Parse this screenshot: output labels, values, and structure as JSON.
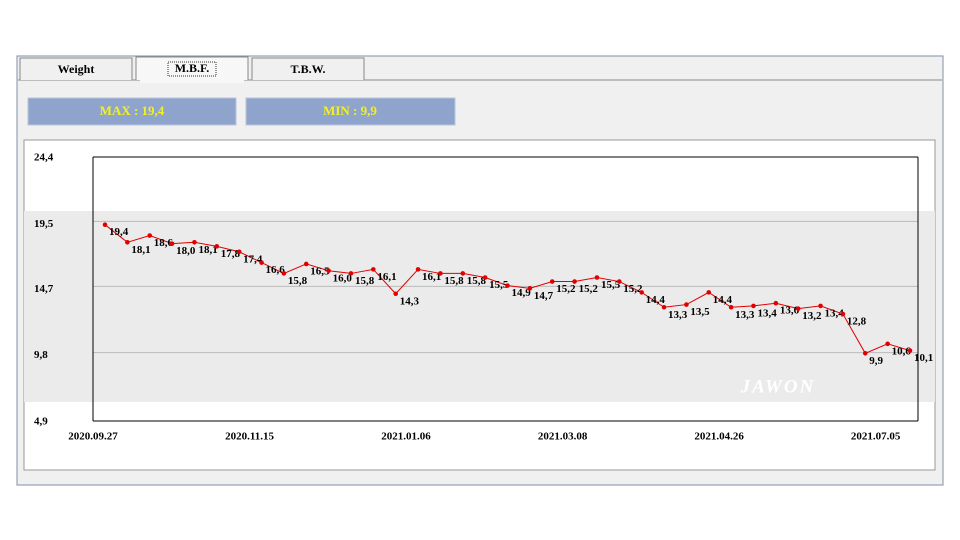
{
  "tabs": [
    "Weight",
    "M.B.F.",
    "T.B.W."
  ],
  "stats": {
    "max": "MAX : 19,4",
    "min": "MIN : 9,9"
  },
  "watermark": "JAWON",
  "chart_data": {
    "type": "line",
    "categories": [
      "2020.09.27",
      null,
      null,
      null,
      null,
      null,
      null,
      "2020.11.15",
      null,
      null,
      null,
      null,
      null,
      null,
      "2021.01.06",
      null,
      null,
      null,
      null,
      null,
      null,
      "2021.03.08",
      null,
      null,
      null,
      null,
      null,
      null,
      "2021.04.26",
      null,
      null,
      null,
      null,
      null,
      null,
      "2021.07.05",
      null
    ],
    "values": [
      19.4,
      18.1,
      18.6,
      18.0,
      18.1,
      17.8,
      17.4,
      16.6,
      15.8,
      16.5,
      16.0,
      15.8,
      16.1,
      14.3,
      16.1,
      15.8,
      15.8,
      15.5,
      14.9,
      14.7,
      15.2,
      15.2,
      15.5,
      15.2,
      14.4,
      13.3,
      13.5,
      14.4,
      13.3,
      13.4,
      13.6,
      13.2,
      13.4,
      12.8,
      9.9,
      10.6,
      10.1
    ],
    "value_labels": [
      "19,4",
      "18,1",
      "18,6",
      "18,0",
      "18,1",
      "17,8",
      "17,4",
      "16,6",
      "15,8",
      "16,5",
      "16,0",
      "15,8",
      "16,1",
      "14,3",
      "16,1",
      "15,8",
      "15,8",
      "15,5",
      "14,9",
      "14,7",
      "15,2",
      "15,2",
      "15,5",
      "15,2",
      "14,4",
      "13,3",
      "13,5",
      "14,4",
      "13,3",
      "13,4",
      "13,6",
      "13,2",
      "13,4",
      "12,8",
      "9,9",
      "10,6",
      "10,1"
    ],
    "color": "#e00000",
    "ylim": [
      4.9,
      24.4
    ],
    "yticks": [
      {
        "value": 4.9,
        "label": "4,9"
      },
      {
        "value": 9.8,
        "label": "9,8"
      },
      {
        "value": 14.7,
        "label": "14,7"
      },
      {
        "value": 19.5,
        "label": "19,5"
      },
      {
        "value": 24.4,
        "label": "24,4"
      }
    ],
    "grid": true
  }
}
